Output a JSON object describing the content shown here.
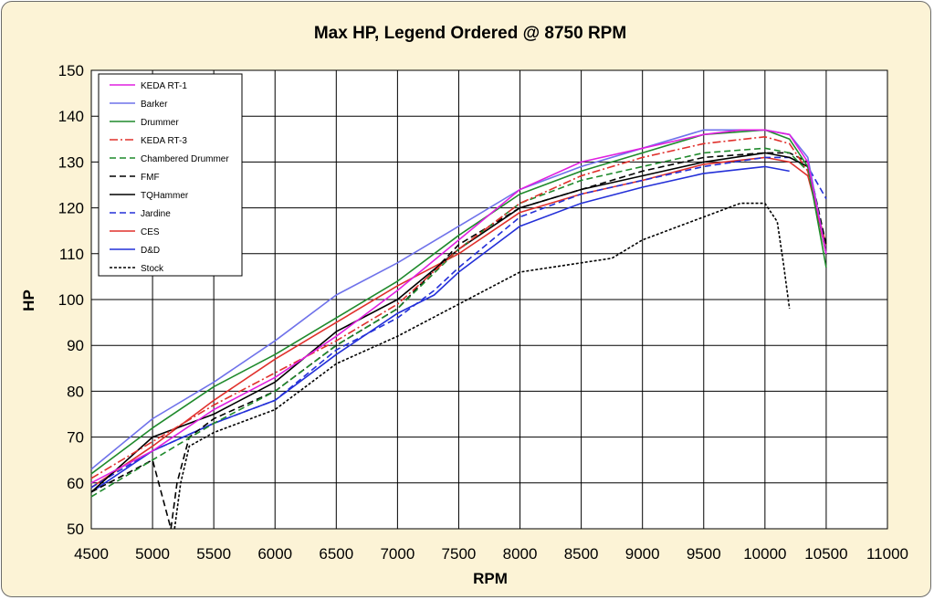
{
  "chart_data": {
    "type": "line",
    "title": "Max HP, Legend Ordered @ 8750 RPM",
    "xlabel": "RPM",
    "ylabel": "HP",
    "xlim": [
      4500,
      11000
    ],
    "ylim": [
      50,
      150
    ],
    "xticks": [
      "4500",
      "5000",
      "5500",
      "6000",
      "6500",
      "7000",
      "7500",
      "8000",
      "8500",
      "9000",
      "9500",
      "10000",
      "10500",
      "11000"
    ],
    "yticks": [
      "50",
      "60",
      "70",
      "80",
      "90",
      "100",
      "110",
      "120",
      "130",
      "140",
      "150"
    ],
    "grid": true,
    "legend_position": "top-left",
    "series": [
      {
        "name": "KEDA RT-1",
        "color": "#e020e0",
        "dash": "",
        "points": [
          [
            4500,
            60
          ],
          [
            5000,
            67
          ],
          [
            5500,
            76
          ],
          [
            6000,
            83
          ],
          [
            6500,
            92
          ],
          [
            7000,
            102
          ],
          [
            7500,
            113
          ],
          [
            8000,
            124
          ],
          [
            8500,
            130
          ],
          [
            9000,
            133
          ],
          [
            9500,
            136
          ],
          [
            9800,
            137
          ],
          [
            10000,
            137
          ],
          [
            10200,
            136
          ],
          [
            10350,
            130
          ],
          [
            10500,
            110
          ]
        ]
      },
      {
        "name": "Barker",
        "color": "#6f72ea",
        "dash": "",
        "points": [
          [
            4500,
            63
          ],
          [
            5000,
            74
          ],
          [
            5500,
            82
          ],
          [
            6000,
            91
          ],
          [
            6500,
            101
          ],
          [
            7000,
            108
          ],
          [
            7500,
            116
          ],
          [
            8000,
            124
          ],
          [
            8500,
            129
          ],
          [
            9000,
            133
          ],
          [
            9500,
            137
          ],
          [
            10000,
            137
          ],
          [
            10200,
            136
          ],
          [
            10350,
            131
          ],
          [
            10500,
            110
          ]
        ]
      },
      {
        "name": "Drummer",
        "color": "#1f8a2c",
        "dash": "",
        "points": [
          [
            4500,
            62
          ],
          [
            5000,
            72
          ],
          [
            5500,
            81
          ],
          [
            6000,
            88
          ],
          [
            6500,
            96
          ],
          [
            7000,
            104
          ],
          [
            7500,
            114
          ],
          [
            8000,
            123
          ],
          [
            8500,
            128
          ],
          [
            9000,
            132
          ],
          [
            9500,
            136
          ],
          [
            10000,
            137
          ],
          [
            10200,
            135
          ],
          [
            10350,
            129
          ],
          [
            10500,
            107
          ]
        ]
      },
      {
        "name": "KEDA RT-3",
        "color": "#e0302c",
        "dash": "9,3,2,3",
        "points": [
          [
            4500,
            61
          ],
          [
            5000,
            69
          ],
          [
            5500,
            77
          ],
          [
            6000,
            84
          ],
          [
            6500,
            91
          ],
          [
            7000,
            99
          ],
          [
            7500,
            111
          ],
          [
            8000,
            121
          ],
          [
            8500,
            127
          ],
          [
            9000,
            131
          ],
          [
            9500,
            134
          ],
          [
            10000,
            135.5
          ],
          [
            10200,
            134
          ],
          [
            10350,
            128
          ],
          [
            10500,
            110
          ]
        ]
      },
      {
        "name": "Chambered Drummer",
        "color": "#1f8a2c",
        "dash": "7,4",
        "points": [
          [
            4500,
            57
          ],
          [
            5000,
            65
          ],
          [
            5500,
            73
          ],
          [
            6000,
            80
          ],
          [
            6500,
            90
          ],
          [
            7000,
            98
          ],
          [
            7500,
            111
          ],
          [
            8000,
            121
          ],
          [
            8500,
            126
          ],
          [
            9000,
            129
          ],
          [
            9500,
            132
          ],
          [
            10000,
            133
          ],
          [
            10200,
            132
          ],
          [
            10350,
            128
          ],
          [
            10500,
            110
          ]
        ]
      },
      {
        "name": "FMF",
        "color": "#000000",
        "dash": "7,4",
        "points": [
          [
            4500,
            58
          ],
          [
            5000,
            65
          ],
          [
            5150,
            50
          ],
          [
            5200,
            60
          ],
          [
            5300,
            70
          ],
          [
            5500,
            74
          ],
          [
            6000,
            80
          ],
          [
            6500,
            90
          ],
          [
            7000,
            98
          ],
          [
            7500,
            112
          ],
          [
            8000,
            120
          ],
          [
            8500,
            124
          ],
          [
            9000,
            128
          ],
          [
            9500,
            131
          ],
          [
            10000,
            132
          ],
          [
            10200,
            132
          ],
          [
            10350,
            130
          ],
          [
            10500,
            112
          ]
        ]
      },
      {
        "name": "TQHammer",
        "color": "#000000",
        "dash": "",
        "points": [
          [
            4500,
            58
          ],
          [
            5000,
            70
          ],
          [
            5500,
            75
          ],
          [
            6000,
            82
          ],
          [
            6500,
            93
          ],
          [
            7000,
            100
          ],
          [
            7500,
            111
          ],
          [
            8000,
            120
          ],
          [
            8500,
            124
          ],
          [
            9000,
            127
          ],
          [
            9500,
            130
          ],
          [
            10000,
            132
          ],
          [
            10200,
            131
          ],
          [
            10350,
            129
          ],
          [
            10500,
            110
          ]
        ]
      },
      {
        "name": "Jardine",
        "color": "#2430d8",
        "dash": "7,4",
        "points": [
          [
            4500,
            59
          ],
          [
            5000,
            67
          ],
          [
            5500,
            73
          ],
          [
            6000,
            78
          ],
          [
            6500,
            89
          ],
          [
            7000,
            96
          ],
          [
            7300,
            102
          ],
          [
            7500,
            107
          ],
          [
            8000,
            118
          ],
          [
            8500,
            123
          ],
          [
            9000,
            126
          ],
          [
            9500,
            129
          ],
          [
            10000,
            131
          ],
          [
            10200,
            131
          ],
          [
            10350,
            129
          ],
          [
            10500,
            122
          ]
        ]
      },
      {
        "name": "CES",
        "color": "#e0302c",
        "dash": "",
        "points": [
          [
            4500,
            59
          ],
          [
            5000,
            68
          ],
          [
            5500,
            78
          ],
          [
            6000,
            87
          ],
          [
            6500,
            95
          ],
          [
            7000,
            103
          ],
          [
            7500,
            110
          ],
          [
            8000,
            119
          ],
          [
            8500,
            123
          ],
          [
            9000,
            126
          ],
          [
            9500,
            129.5
          ],
          [
            10000,
            131
          ],
          [
            10200,
            130
          ],
          [
            10350,
            127
          ],
          [
            10500,
            112
          ]
        ]
      },
      {
        "name": "D&D",
        "color": "#2430d8",
        "dash": "",
        "points": [
          [
            4500,
            58
          ],
          [
            5000,
            67
          ],
          [
            5500,
            73
          ],
          [
            6000,
            78
          ],
          [
            6500,
            88
          ],
          [
            7000,
            97
          ],
          [
            7300,
            101
          ],
          [
            7500,
            106
          ],
          [
            8000,
            116
          ],
          [
            8500,
            121
          ],
          [
            9000,
            124.5
          ],
          [
            9500,
            127.5
          ],
          [
            10000,
            129
          ],
          [
            10200,
            128
          ]
        ]
      },
      {
        "name": "Stock",
        "color": "#000000",
        "dash": "3,2",
        "points": [
          [
            5180,
            50
          ],
          [
            5230,
            60
          ],
          [
            5300,
            68
          ],
          [
            5500,
            71
          ],
          [
            6000,
            76
          ],
          [
            6500,
            86
          ],
          [
            7000,
            92
          ],
          [
            7500,
            99
          ],
          [
            8000,
            106
          ],
          [
            8500,
            108
          ],
          [
            8750,
            109
          ],
          [
            9000,
            113
          ],
          [
            9500,
            118
          ],
          [
            9800,
            121
          ],
          [
            10000,
            121
          ],
          [
            10100,
            117
          ],
          [
            10150,
            108
          ],
          [
            10200,
            98
          ]
        ]
      }
    ]
  }
}
